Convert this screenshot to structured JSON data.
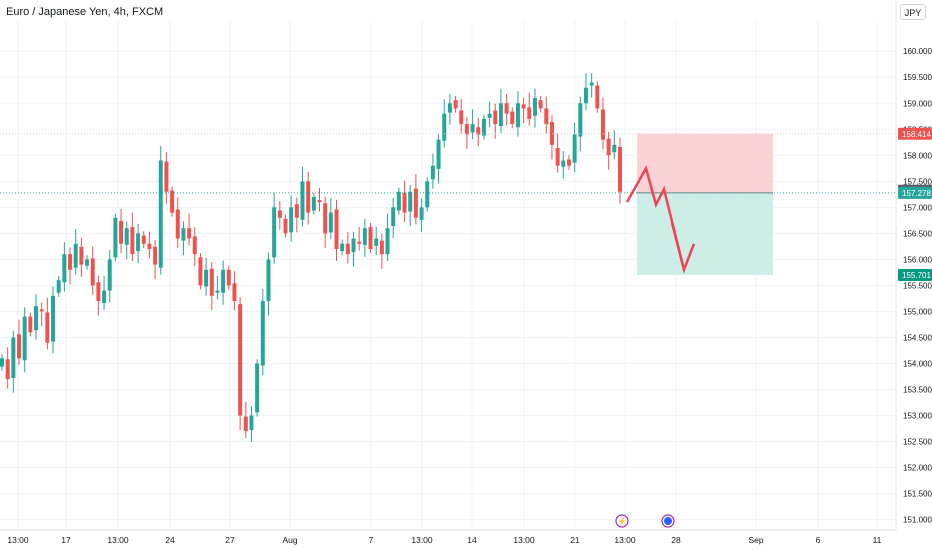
{
  "header": {
    "title": "Euro / Japanese Yen, 4h, FXCM",
    "currency": "JPY"
  },
  "colors": {
    "up": "#26a69a",
    "down": "#ef5350",
    "stop_zone": "#fbd3d5",
    "target_zone": "#cdeee7",
    "projection": "#ef4456",
    "grid": "#f0f3fa"
  },
  "events": [
    {
      "icon": "lightning-icon",
      "label": "⚡"
    },
    {
      "icon": "flag-icon",
      "label": "◉"
    }
  ],
  "chart_data": {
    "type": "candlestick",
    "symbol": "EURJPY",
    "interval": "4h",
    "ylim": [
      150.8,
      160.6
    ],
    "y_ticks": [
      "151.000",
      "151.500",
      "152.000",
      "152.500",
      "153.000",
      "153.500",
      "154.000",
      "154.500",
      "155.000",
      "155.500",
      "156.000",
      "156.500",
      "157.000",
      "157.500",
      "158.000",
      "158.500",
      "159.000",
      "159.500",
      "160.000"
    ],
    "x_ticks": [
      "13:00",
      "17",
      "13:00",
      "24",
      "27",
      "Aug",
      "7",
      "13:00",
      "14",
      "13:00",
      "21",
      "13:00",
      "28",
      "Sep",
      "6",
      "11"
    ],
    "price_tags": [
      {
        "label": "158.414",
        "value": 158.414,
        "color": "#ef5350"
      },
      {
        "label": "157.319",
        "value": 157.319,
        "color": "#5d606b"
      },
      {
        "label": "157.278",
        "value": 157.278,
        "color": "#26a69a"
      },
      {
        "label": "155.701",
        "value": 155.701,
        "color": "#089981"
      }
    ],
    "position": {
      "entry": 157.278,
      "stop": 158.414,
      "target": 155.701,
      "direction": "short"
    },
    "projection_path": [
      157.1,
      157.75,
      157.05,
      157.35,
      155.8
    ],
    "projection_arrowhead": 156.3,
    "anchors": [
      [
        154.1,
        153.7,
        154.5,
        154.1,
        154.9,
        154.6,
        155.1,
        155.0,
        154.4,
        155.3,
        155.6,
        156.1,
        155.8,
        156.3,
        155.9,
        156.0,
        155.5,
        155.2,
        155.4,
        156.0,
        156.8,
        156.3,
        156.6,
        156.1,
        156.5,
        156.3,
        156.2,
        155.9,
        157.9,
        157.3,
        156.9,
        156.4,
        156.6,
        156.4,
        156.1,
        155.5,
        155.8,
        155.3,
        155.4,
        155.8,
        155.5,
        155.2,
        153.0,
        152.7,
        153.0,
        154.0,
        155.2,
        156.0,
        157.0,
        156.8,
        156.5,
        157.0,
        156.8,
        157.5,
        156.9,
        157.2,
        157.1,
        156.5,
        156.9,
        156.2,
        156.3,
        156.1,
        156.4,
        156.3,
        156.6,
        156.2,
        156.4,
        156.1,
        156.6,
        157.0,
        157.3,
        156.9,
        157.3,
        156.8,
        157.0,
        157.5,
        157.8,
        158.3,
        158.8,
        159.0,
        158.9,
        158.6,
        158.4,
        158.6,
        158.4,
        158.7,
        158.8,
        158.6,
        159.0,
        158.8,
        158.6,
        159.0,
        158.9,
        158.7,
        159.1,
        158.9,
        158.6,
        158.2,
        157.8,
        157.9,
        157.8,
        158.4,
        159.0,
        159.3,
        159.4,
        158.9,
        158.3,
        158.0,
        158.2,
        157.3
      ]
    ]
  }
}
